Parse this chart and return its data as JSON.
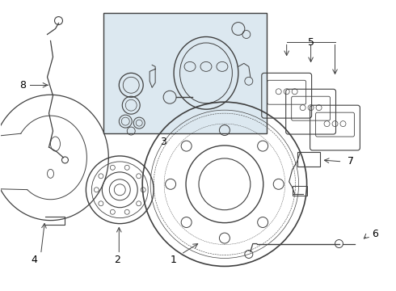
{
  "bg_color": "#ffffff",
  "line_color": "#404040",
  "box_bg": "#dce8f0",
  "figsize": [
    4.9,
    3.6
  ],
  "dpi": 100,
  "xlim": [
    0,
    490
  ],
  "ylim": [
    0,
    360
  ]
}
